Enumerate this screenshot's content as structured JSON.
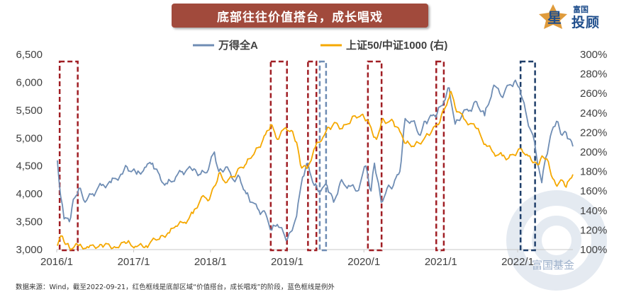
{
  "title": "底部往往价值搭台，成长唱戏",
  "logo": {
    "small": "富国",
    "big": "投顾",
    "mark": "星"
  },
  "watermark": "富国基金",
  "source": "数据来源：Wind，截至2022-09-21，红色框线是底部区域“价值搭台，成长唱戏”的阶段，蓝色框线是例外",
  "colors": {
    "series1": "#6f8db4",
    "series2": "#f5a800",
    "red_box": "#a01e24",
    "blue_box": "#6f8db4",
    "dark_blue_box": "#1f3f6a",
    "banner": "#a14a3c"
  },
  "chart_data": {
    "type": "line",
    "x_ticks": [
      "2016/1",
      "2017/1",
      "2018/1",
      "2019/1",
      "2020/1",
      "2021/1",
      "2022/1"
    ],
    "xlim": [
      "2016-01-01",
      "2022-09-21"
    ],
    "y_left": {
      "ticks": [
        "3,000",
        "3,500",
        "4,000",
        "4,500",
        "5,000",
        "5,500",
        "6,000",
        "6,500"
      ],
      "lim": [
        3000,
        6500
      ]
    },
    "y_right": {
      "ticks": [
        "100%",
        "120%",
        "140%",
        "160%",
        "180%",
        "200%",
        "220%",
        "240%",
        "260%",
        "280%",
        "300%"
      ],
      "lim": [
        100,
        300
      ]
    },
    "series": [
      {
        "name": "万得全A",
        "axis": "left",
        "points": [
          [
            "2016-01-04",
            4600
          ],
          [
            "2016-01-20",
            3950
          ],
          [
            "2016-02-05",
            3550
          ],
          [
            "2016-03-01",
            3500
          ],
          [
            "2016-03-20",
            3900
          ],
          [
            "2016-04-15",
            4100
          ],
          [
            "2016-05-15",
            3850
          ],
          [
            "2016-06-20",
            4000
          ],
          [
            "2016-08-01",
            4150
          ],
          [
            "2016-09-15",
            4200
          ],
          [
            "2016-11-01",
            4350
          ],
          [
            "2016-12-01",
            4480
          ],
          [
            "2017-01-15",
            4350
          ],
          [
            "2017-03-01",
            4480
          ],
          [
            "2017-04-01",
            4550
          ],
          [
            "2017-05-10",
            4250
          ],
          [
            "2017-06-10",
            4180
          ],
          [
            "2017-07-20",
            4300
          ],
          [
            "2017-08-20",
            4400
          ],
          [
            "2017-10-15",
            4450
          ],
          [
            "2017-11-15",
            4350
          ],
          [
            "2017-12-15",
            4380
          ],
          [
            "2018-01-20",
            4750
          ],
          [
            "2018-02-10",
            4400
          ],
          [
            "2018-03-15",
            4480
          ],
          [
            "2018-04-20",
            4250
          ],
          [
            "2018-05-20",
            4300
          ],
          [
            "2018-06-20",
            4000
          ],
          [
            "2018-07-15",
            3850
          ],
          [
            "2018-08-20",
            3700
          ],
          [
            "2018-09-20",
            3650
          ],
          [
            "2018-10-20",
            3350
          ],
          [
            "2018-11-15",
            3450
          ],
          [
            "2018-12-20",
            3250
          ],
          [
            "2019-01-03",
            3200
          ],
          [
            "2019-02-15",
            3600
          ],
          [
            "2019-03-15",
            4300
          ],
          [
            "2019-04-10",
            4550
          ],
          [
            "2019-05-10",
            4150
          ],
          [
            "2019-06-10",
            4050
          ],
          [
            "2019-07-10",
            4150
          ],
          [
            "2019-08-10",
            3850
          ],
          [
            "2019-09-10",
            4200
          ],
          [
            "2019-10-20",
            4150
          ],
          [
            "2019-11-30",
            4050
          ],
          [
            "2020-01-10",
            4500
          ],
          [
            "2020-02-04",
            4050
          ],
          [
            "2020-02-20",
            4550
          ],
          [
            "2020-03-23",
            3850
          ],
          [
            "2020-04-20",
            4100
          ],
          [
            "2020-05-20",
            4150
          ],
          [
            "2020-06-20",
            4400
          ],
          [
            "2020-07-15",
            5350
          ],
          [
            "2020-08-20",
            5300
          ],
          [
            "2020-09-25",
            5050
          ],
          [
            "2020-10-20",
            5300
          ],
          [
            "2020-11-20",
            5400
          ],
          [
            "2020-12-15",
            5450
          ],
          [
            "2021-01-15",
            5650
          ],
          [
            "2021-02-10",
            5900
          ],
          [
            "2021-03-10",
            5250
          ],
          [
            "2021-04-15",
            5450
          ],
          [
            "2021-05-20",
            5500
          ],
          [
            "2021-06-20",
            5650
          ],
          [
            "2021-07-28",
            5400
          ],
          [
            "2021-09-10",
            5950
          ],
          [
            "2021-10-15",
            5750
          ],
          [
            "2021-11-20",
            5950
          ],
          [
            "2021-12-15",
            6000
          ],
          [
            "2022-01-10",
            5900
          ],
          [
            "2022-02-15",
            5350
          ],
          [
            "2022-03-15",
            5050
          ],
          [
            "2022-04-26",
            4200
          ],
          [
            "2022-05-15",
            4650
          ],
          [
            "2022-06-20",
            5200
          ],
          [
            "2022-07-05",
            5300
          ],
          [
            "2022-08-01",
            5050
          ],
          [
            "2022-08-20",
            5100
          ],
          [
            "2022-09-21",
            4850
          ]
        ]
      },
      {
        "name": "上证50/中证1000 (右)",
        "axis": "right",
        "points": [
          [
            "2016-01-04",
            104
          ],
          [
            "2016-01-20",
            114
          ],
          [
            "2016-02-05",
            108
          ],
          [
            "2016-03-01",
            102
          ],
          [
            "2016-04-15",
            104
          ],
          [
            "2016-06-01",
            102
          ],
          [
            "2016-08-01",
            105
          ],
          [
            "2016-10-01",
            103
          ],
          [
            "2016-12-01",
            107
          ],
          [
            "2017-01-15",
            103
          ],
          [
            "2017-03-01",
            104
          ],
          [
            "2017-05-10",
            114
          ],
          [
            "2017-06-20",
            117
          ],
          [
            "2017-07-20",
            124
          ],
          [
            "2017-09-01",
            128
          ],
          [
            "2017-10-10",
            137
          ],
          [
            "2017-11-20",
            154
          ],
          [
            "2017-12-20",
            150
          ],
          [
            "2018-01-25",
            166
          ],
          [
            "2018-02-10",
            178
          ],
          [
            "2018-03-20",
            169
          ],
          [
            "2018-04-20",
            175
          ],
          [
            "2018-05-20",
            184
          ],
          [
            "2018-06-20",
            188
          ],
          [
            "2018-07-20",
            196
          ],
          [
            "2018-08-20",
            205
          ],
          [
            "2018-09-20",
            218
          ],
          [
            "2018-10-15",
            228
          ],
          [
            "2018-11-15",
            213
          ],
          [
            "2018-12-25",
            225
          ],
          [
            "2019-01-20",
            222
          ],
          [
            "2019-02-15",
            210
          ],
          [
            "2019-03-05",
            187
          ],
          [
            "2019-04-05",
            183
          ],
          [
            "2019-05-15",
            205
          ],
          [
            "2019-06-20",
            215
          ],
          [
            "2019-07-20",
            225
          ],
          [
            "2019-08-20",
            230
          ],
          [
            "2019-09-20",
            224
          ],
          [
            "2019-10-20",
            229
          ],
          [
            "2019-11-20",
            237
          ],
          [
            "2019-12-20",
            238
          ],
          [
            "2020-01-15",
            233
          ],
          [
            "2020-02-10",
            220
          ],
          [
            "2020-03-01",
            213
          ],
          [
            "2020-03-25",
            232
          ],
          [
            "2020-04-20",
            230
          ],
          [
            "2020-05-20",
            231
          ],
          [
            "2020-06-20",
            221
          ],
          [
            "2020-07-20",
            209
          ],
          [
            "2020-08-20",
            206
          ],
          [
            "2020-09-20",
            209
          ],
          [
            "2020-10-20",
            216
          ],
          [
            "2020-11-20",
            222
          ],
          [
            "2020-12-20",
            228
          ],
          [
            "2021-01-10",
            242
          ],
          [
            "2021-02-10",
            256
          ],
          [
            "2021-02-18",
            262
          ],
          [
            "2021-03-10",
            246
          ],
          [
            "2021-04-20",
            234
          ],
          [
            "2021-06-20",
            224
          ],
          [
            "2021-08-01",
            208
          ],
          [
            "2021-09-10",
            199
          ],
          [
            "2021-10-20",
            196
          ],
          [
            "2021-11-20",
            194
          ],
          [
            "2021-12-15",
            197
          ],
          [
            "2022-01-20",
            203
          ],
          [
            "2022-02-20",
            196
          ],
          [
            "2022-03-15",
            189
          ],
          [
            "2022-04-05",
            187
          ],
          [
            "2022-04-27",
            196
          ],
          [
            "2022-05-20",
            193
          ],
          [
            "2022-06-10",
            176
          ],
          [
            "2022-07-01",
            167
          ],
          [
            "2022-08-01",
            171
          ],
          [
            "2022-08-20",
            164
          ],
          [
            "2022-09-21",
            177
          ]
        ]
      }
    ],
    "boxes": [
      {
        "type": "red",
        "start": "2016-01-15",
        "end": "2016-04-10"
      },
      {
        "type": "red",
        "start": "2018-10-15",
        "end": "2018-12-31"
      },
      {
        "type": "red",
        "start": "2019-04-10",
        "end": "2019-05-20"
      },
      {
        "type": "blue",
        "start": "2019-06-05",
        "end": "2019-07-05"
      },
      {
        "type": "red",
        "start": "2020-01-20",
        "end": "2020-03-25"
      },
      {
        "type": "red",
        "start": "2020-12-10",
        "end": "2021-01-15"
      },
      {
        "type": "dark-blue",
        "start": "2022-01-15",
        "end": "2022-03-25"
      }
    ],
    "legend_position": "top-center",
    "grid": false
  }
}
